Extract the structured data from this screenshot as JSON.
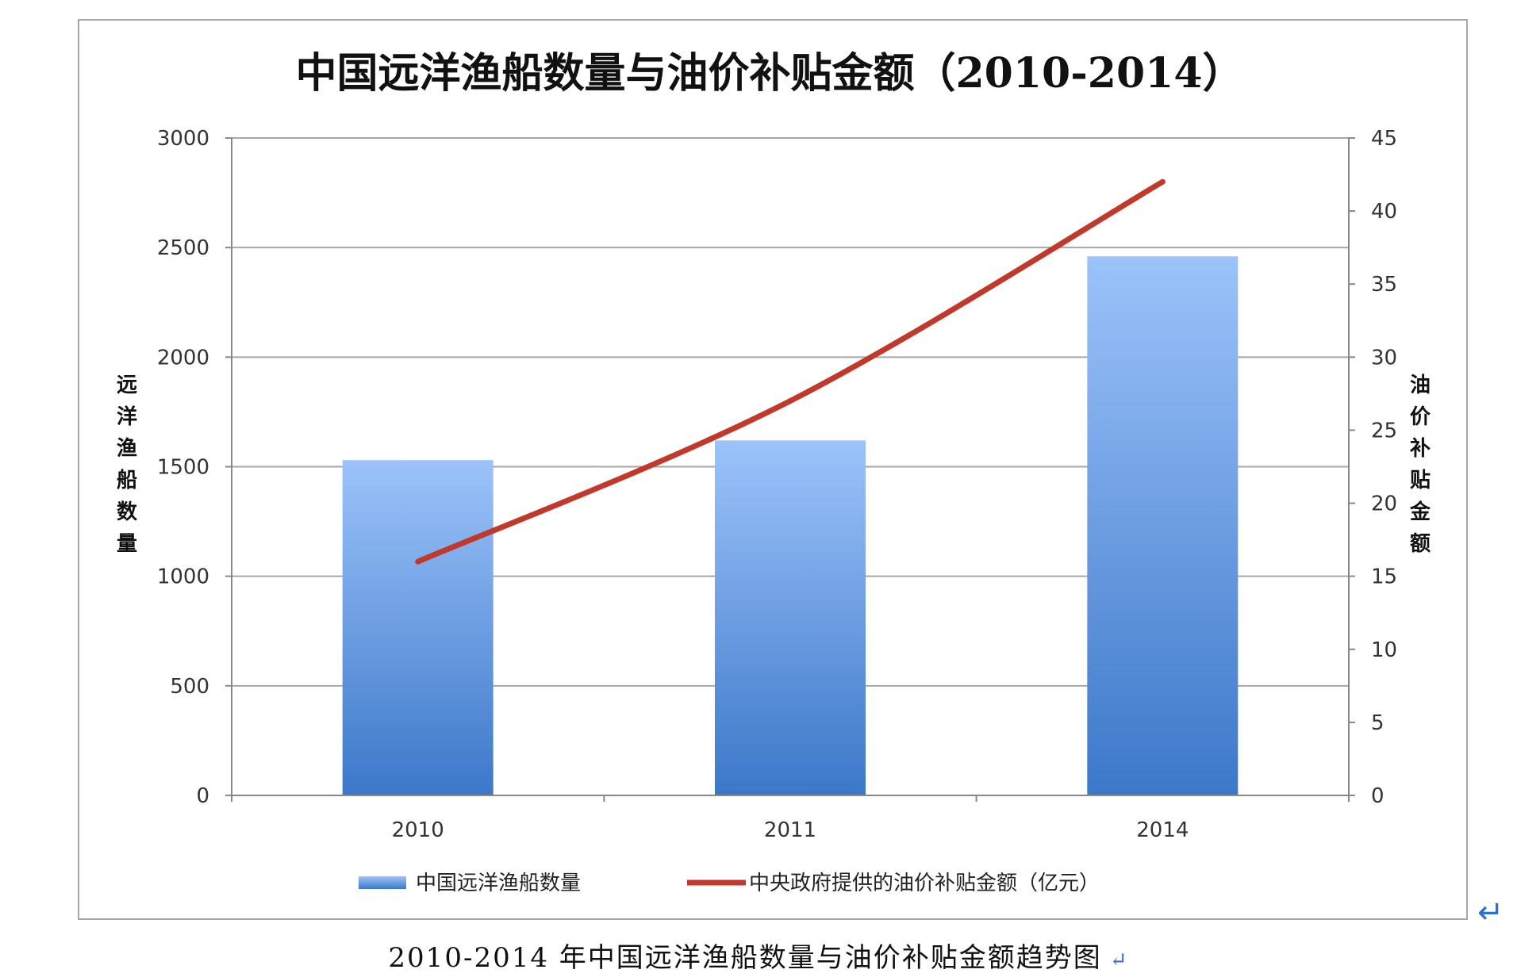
{
  "chart_data": {
    "type": "bar",
    "title": "中国远洋渔船数量与油价补贴金额（2010-2014）",
    "categories": [
      "2010",
      "2011",
      "2014"
    ],
    "series": [
      {
        "name": "中国远洋渔船数量",
        "type": "bar",
        "axis": "left",
        "values": [
          1530,
          1620,
          2460
        ],
        "color": "#5b8fd9"
      },
      {
        "name": "中央政府提供的油价补贴金额（亿元）",
        "type": "line",
        "axis": "right",
        "values": [
          16,
          27,
          42
        ],
        "color": "#c0392b"
      }
    ],
    "y_left": {
      "label": "远洋渔船数量",
      "min": 0,
      "max": 3000,
      "step": 500,
      "ticks": [
        "0",
        "500",
        "1000",
        "1500",
        "2000",
        "2500",
        "3000"
      ]
    },
    "y_right": {
      "label": "油价补贴金额",
      "min": 0,
      "max": 45,
      "step": 5,
      "ticks": [
        "0",
        "5",
        "10",
        "15",
        "20",
        "25",
        "30",
        "35",
        "40",
        "45"
      ]
    },
    "grid": true,
    "legend_position": "bottom"
  },
  "caption": {
    "text": "2010-2014 年中国远洋渔船数量与油价补贴金额趋势图",
    "mark": "↵"
  },
  "return_mark": "↵"
}
